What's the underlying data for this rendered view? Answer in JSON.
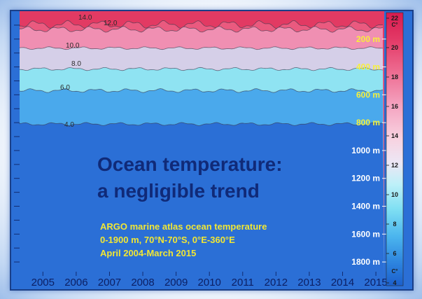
{
  "slide": {
    "title_lines": [
      "Ocean temperature:",
      "a negligible trend"
    ],
    "subtitle_lines": [
      "ARGO marine atlas ocean temperature",
      "0-1900 m, 70°N-70°S, 0°E-360°E",
      "April 2004-March 2015"
    ]
  },
  "colors": {
    "title": "#102a78",
    "subtitle": "#f2e733",
    "frame_border": "#1a3f88"
  },
  "chart_data": {
    "type": "heatmap",
    "title": "",
    "xlabel": "",
    "ylabel": "",
    "x_ticks": [
      "2005",
      "2006",
      "2007",
      "2008",
      "2009",
      "2010",
      "2011",
      "2012",
      "2013",
      "2014",
      "2015"
    ],
    "x_range": [
      2004.3,
      2015.25
    ],
    "depth_ticks": [
      "200 m",
      "400 m",
      "600 m",
      "800 m",
      "1000 m",
      "1200 m",
      "1400 m",
      "1600 m",
      "1800 m"
    ],
    "depth_range": [
      0,
      1900
    ],
    "contour_levels": [
      {
        "label": "4.0",
        "depth": 810
      },
      {
        "label": "6.0",
        "depth": 570
      },
      {
        "label": "8.0",
        "depth": 415
      },
      {
        "label": "10.0",
        "depth": 265
      },
      {
        "label": "12.0",
        "depth": 130
      },
      {
        "label": "14.0",
        "depth": 95
      }
    ],
    "colorbar": {
      "unit_top": "C°",
      "unit_bottom": "C°",
      "ticks": [
        "22",
        "20",
        "18",
        "16",
        "14",
        "12",
        "10",
        "8",
        "6",
        "4"
      ],
      "range": [
        4,
        22
      ]
    }
  }
}
